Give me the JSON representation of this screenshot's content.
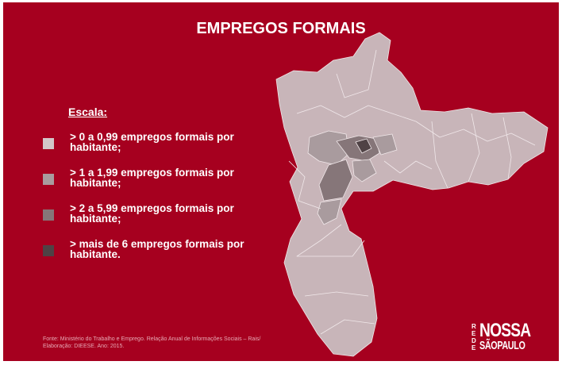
{
  "title": "EMPREGOS FORMAIS",
  "legend": {
    "heading": "Escala:",
    "items": [
      {
        "label": "> 0 a 0,99 empregos formais por habitante;",
        "color": "#d3c6c8"
      },
      {
        "label": "> 1 a 1,99 empregos formais por habitante;",
        "color": "#a99b9e"
      },
      {
        "label": "> 2 a 5,99 empregos formais por habitante;",
        "color": "#867679"
      },
      {
        "label": "> mais de 6 empregos formais por habitante.",
        "color": "#4f4245"
      }
    ]
  },
  "source": "Fonte: Ministério do Trabalho e Emprego. Relação Anual de Informações Sociais – Rais/ Elaboração: DIEESE. Ano: 2015.",
  "logo": {
    "side": "REDE",
    "top": "NOSSA",
    "bottom": "SÃOPAULO"
  }
}
